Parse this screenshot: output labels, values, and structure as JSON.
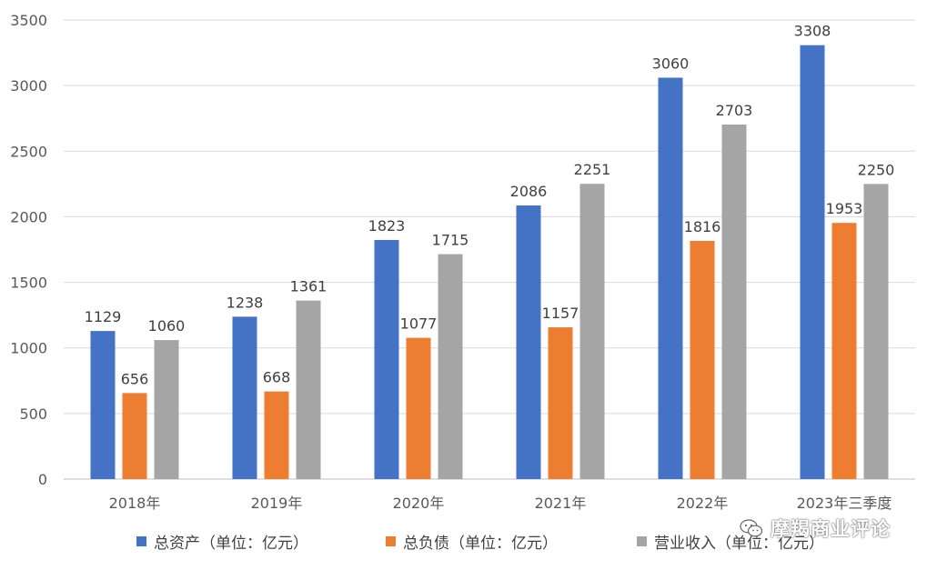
{
  "chart_data": {
    "type": "bar",
    "categories": [
      "2018年",
      "2019年",
      "2020年",
      "2021年",
      "2022年",
      "2023年三季度"
    ],
    "series": [
      {
        "name": "总资产（单位：亿元）",
        "color": "#4472C4",
        "values": [
          1129,
          1238,
          1823,
          2086,
          3060,
          3308
        ]
      },
      {
        "name": "总负债（单位：亿元）",
        "color": "#ED7D31",
        "values": [
          656,
          668,
          1077,
          1157,
          1816,
          1953
        ]
      },
      {
        "name": "营业收入（单位：亿元）",
        "color": "#A5A5A5",
        "values": [
          1060,
          1361,
          1715,
          2251,
          2703,
          2250
        ]
      }
    ],
    "y_ticks": [
      "0",
      "500",
      "1000",
      "1500",
      "2000",
      "2500",
      "3000",
      "3500"
    ],
    "ylim": [
      0,
      3500
    ],
    "grid": true,
    "legend_position": "bottom"
  },
  "watermark": {
    "icon": "wechat-icon",
    "text": "摩羯商业评论"
  }
}
